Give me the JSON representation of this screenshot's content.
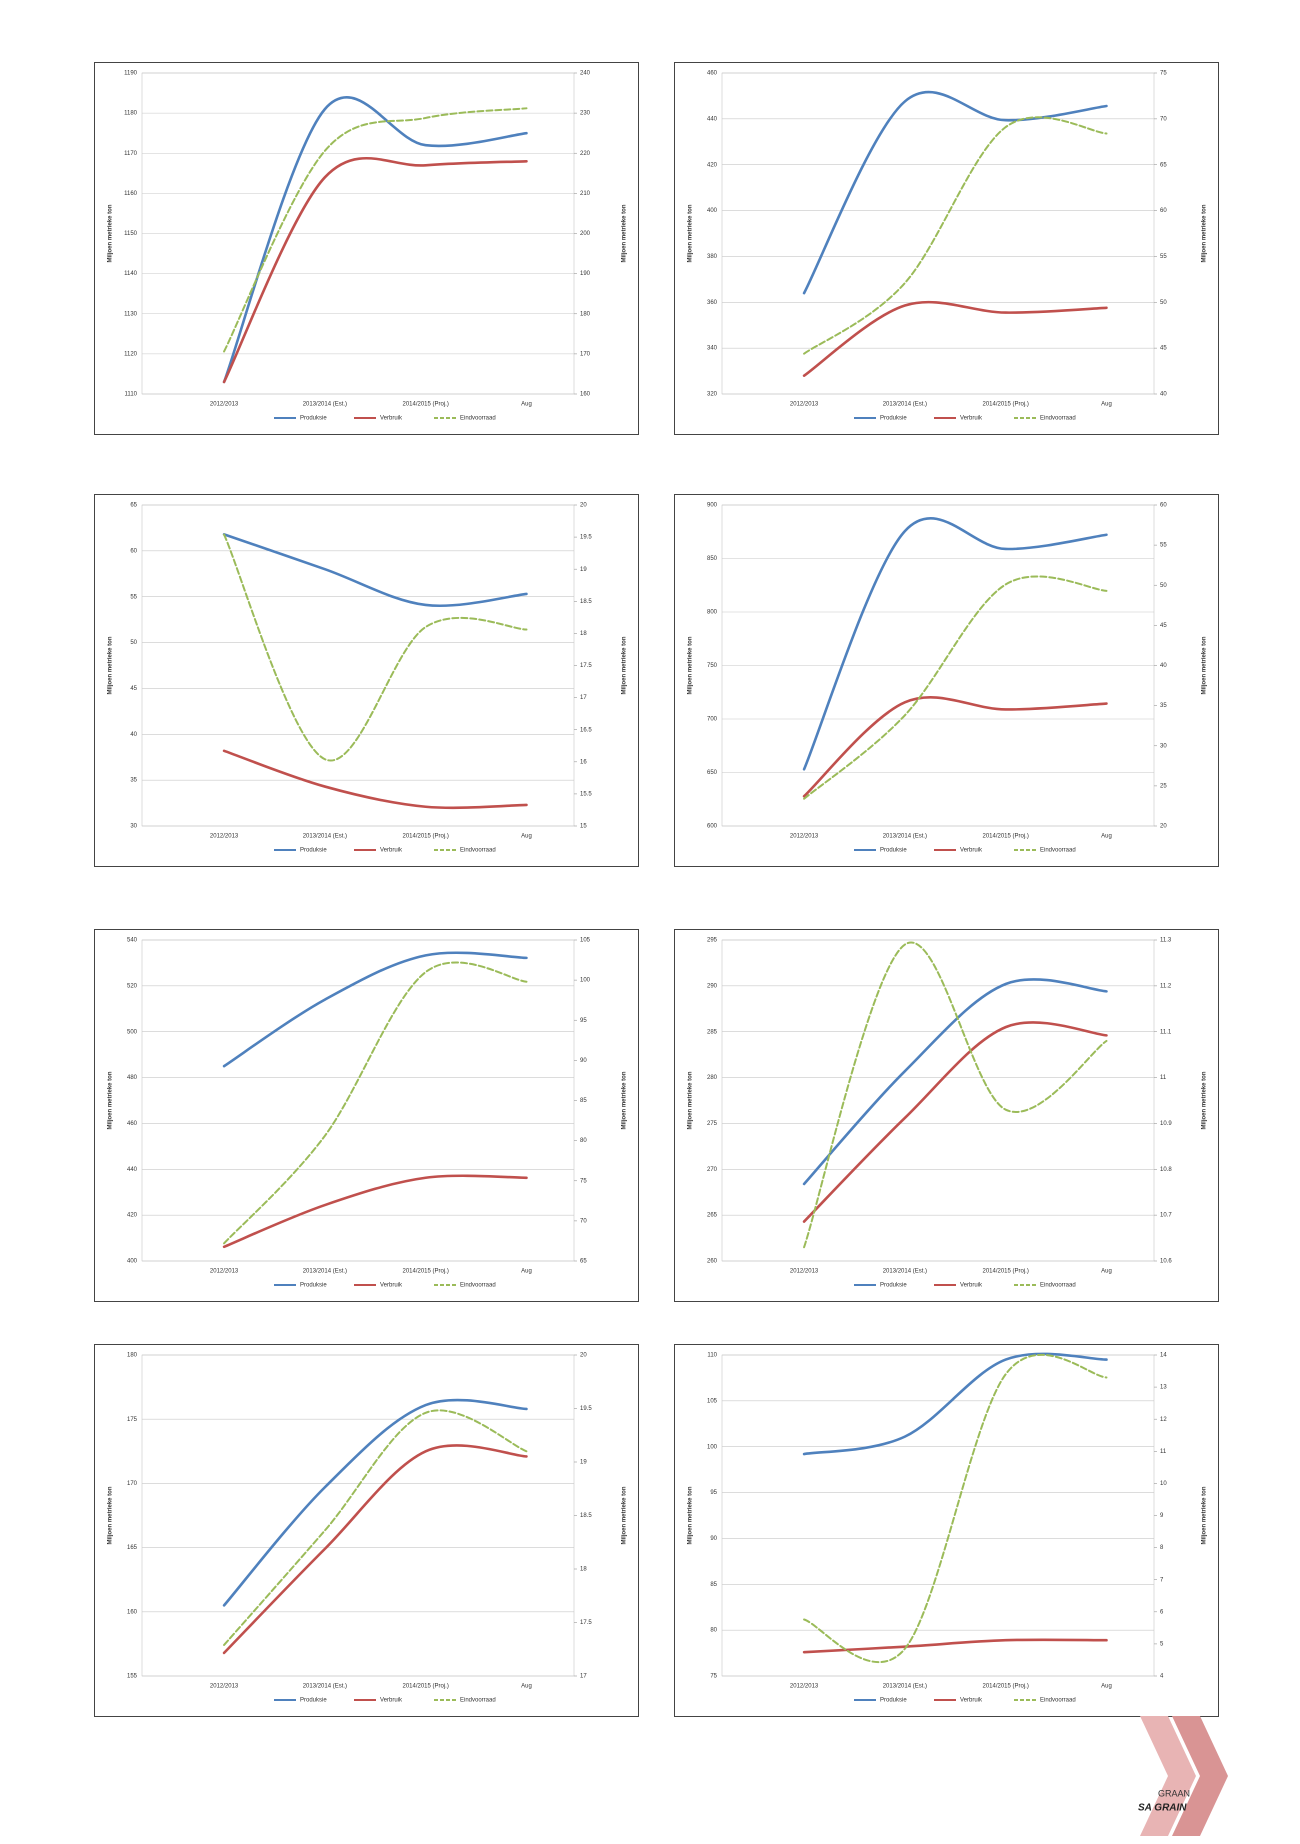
{
  "chart_data": [
    {
      "type": "line",
      "ylabel": "Miljoen metrieke ton",
      "y2label": "Miljoen metrieke ton",
      "categories": [
        "2012/2013",
        "2013/2014 (Est.)",
        "2014/2015 (Proj.)",
        "Aug"
      ],
      "ylim": [
        1110,
        1190
      ],
      "yticks": [
        1110,
        1120,
        1130,
        1140,
        1150,
        1160,
        1170,
        1180,
        1190
      ],
      "y2lim": [
        160,
        240
      ],
      "y2ticks": [
        160,
        170,
        180,
        190,
        200,
        210,
        220,
        230,
        240
      ],
      "grid": true,
      "series": [
        {
          "name": "Produksie",
          "color": "#4f81bd",
          "values": [
            1113,
            1181,
            1172,
            1175
          ]
        },
        {
          "name": "Verbruik",
          "color": "#c0504d",
          "values": [
            1113,
            1164,
            1167,
            1168
          ]
        },
        {
          "name": "Eindvoorraad",
          "color": "#9bbb59",
          "style": "dashed",
          "axis": "y2",
          "values": [
            170.6,
            220.6,
            228.8,
            231.2
          ]
        }
      ]
    },
    {
      "type": "line",
      "ylabel": "Miljoen metrieke ton",
      "y2label": "Miljoen metrieke ton",
      "categories": [
        "2012/2013",
        "2013/2014 (Est.)",
        "2014/2015 (Proj.)",
        "Aug"
      ],
      "ylim": [
        320,
        460
      ],
      "yticks": [
        320,
        340,
        360,
        380,
        400,
        420,
        440,
        460
      ],
      "y2lim": [
        40,
        75
      ],
      "y2ticks": [
        40,
        45,
        50,
        55,
        60,
        65,
        70,
        75
      ],
      "grid": true,
      "series": [
        {
          "name": "Produksie",
          "color": "#4f81bd",
          "values": [
            364,
            447.6,
            439.4,
            445.6
          ]
        },
        {
          "name": "Verbruik",
          "color": "#c0504d",
          "values": [
            328,
            358.6,
            355.5,
            357.6
          ]
        },
        {
          "name": "Eindvoorraad",
          "color": "#9bbb59",
          "style": "dashed",
          "axis": "y2",
          "values": [
            44.4,
            52.1,
            69.1,
            68.4
          ]
        }
      ]
    },
    {
      "type": "line",
      "ylabel": "Miljoen metrieke ton",
      "y2label": "Miljoen metrieke ton",
      "categories": [
        "2012/2013",
        "2013/2014 (Est.)",
        "2014/2015 (Proj.)",
        "Aug"
      ],
      "ylim": [
        30,
        65
      ],
      "yticks": [
        30,
        35,
        40,
        45,
        50,
        55,
        60,
        65
      ],
      "y2lim": [
        15,
        20
      ],
      "y2ticks": [
        15,
        15.5,
        16,
        16.5,
        17,
        17.5,
        18,
        18.5,
        19,
        19.5,
        20
      ],
      "grid": true,
      "series": [
        {
          "name": "Produksie",
          "color": "#4f81bd",
          "values": [
            61.8,
            58.0,
            54.1,
            55.3
          ]
        },
        {
          "name": "Verbruik",
          "color": "#c0504d",
          "values": [
            38.2,
            34.3,
            32.1,
            32.3
          ]
        },
        {
          "name": "Eindvoorraad",
          "color": "#9bbb59",
          "style": "dashed",
          "axis": "y2",
          "values": [
            19.54,
            16.04,
            18.1,
            18.06
          ]
        }
      ]
    },
    {
      "type": "line",
      "ylabel": "Miljoen metrieke ton",
      "y2label": "Miljoen metrieke ton",
      "categories": [
        "2012/2013",
        "2013/2014 (Est.)",
        "2014/2015 (Proj.)",
        "Aug"
      ],
      "ylim": [
        600,
        900
      ],
      "yticks": [
        600,
        650,
        700,
        750,
        800,
        850,
        900
      ],
      "y2lim": [
        20,
        60
      ],
      "y2ticks": [
        20,
        25,
        30,
        35,
        40,
        45,
        50,
        55,
        60
      ],
      "grid": true,
      "series": [
        {
          "name": "Produksie",
          "color": "#4f81bd",
          "values": [
            653,
            875.6,
            858.9,
            872.2
          ]
        },
        {
          "name": "Verbruik",
          "color": "#c0504d",
          "values": [
            627.8,
            715.6,
            708.9,
            714.4
          ]
        },
        {
          "name": "Eindvoorraad",
          "color": "#9bbb59",
          "style": "dashed",
          "axis": "y2",
          "values": [
            23.4,
            33.8,
            50.1,
            49.3
          ]
        }
      ]
    },
    {
      "type": "line",
      "ylabel": "Miljoen metrieke ton",
      "y2label": "Miljoen metrieke ton",
      "categories": [
        "2012/2013",
        "2013/2014 (Est.)",
        "2014/2015 (Proj.)",
        "Aug"
      ],
      "ylim": [
        400,
        540
      ],
      "yticks": [
        400,
        420,
        440,
        460,
        480,
        500,
        520,
        540
      ],
      "y2lim": [
        65,
        105
      ],
      "y2ticks": [
        65,
        70,
        75,
        80,
        85,
        90,
        95,
        100,
        105
      ],
      "grid": true,
      "series": [
        {
          "name": "Produksie",
          "color": "#4f81bd",
          "values": [
            485,
            514,
            533.3,
            532.2
          ]
        },
        {
          "name": "Verbruik",
          "color": "#c0504d",
          "values": [
            406.2,
            424.4,
            436.3,
            436.3
          ]
        },
        {
          "name": "Eindvoorraad",
          "color": "#9bbb59",
          "style": "dashed",
          "axis": "y2",
          "values": [
            67.2,
            80.6,
            101,
            99.8
          ]
        }
      ]
    },
    {
      "type": "line",
      "ylabel": "Miljoen metrieke ton",
      "y2label": "Miljoen metrieke ton",
      "categories": [
        "2012/2013",
        "2013/2014 (Est.)",
        "2014/2015 (Proj.)",
        "Aug"
      ],
      "ylim": [
        260,
        295
      ],
      "yticks": [
        260,
        265,
        270,
        275,
        280,
        285,
        290,
        295
      ],
      "y2lim": [
        10.6,
        11.3
      ],
      "y2ticks": [
        10.6,
        10.7,
        10.8,
        10.9,
        11,
        11.1,
        11.2,
        11.3
      ],
      "grid": true,
      "series": [
        {
          "name": "Produksie",
          "color": "#4f81bd",
          "values": [
            268.4,
            280.7,
            290.2,
            289.4
          ]
        },
        {
          "name": "Verbruik",
          "color": "#c0504d",
          "values": [
            264.3,
            275.6,
            285.5,
            284.6
          ]
        },
        {
          "name": "Eindvoorraad",
          "color": "#9bbb59",
          "style": "dashed",
          "axis": "y2",
          "values": [
            10.63,
            11.29,
            10.93,
            11.08
          ]
        }
      ]
    },
    {
      "type": "line",
      "ylabel": "Miljoen metrieke ton",
      "y2label": "Miljoen metrieke ton",
      "categories": [
        "2012/2013",
        "2013/2014 (Est.)",
        "2014/2015 (Proj.)",
        "Aug"
      ],
      "ylim": [
        155,
        180
      ],
      "yticks": [
        155,
        160,
        165,
        170,
        175,
        180
      ],
      "y2lim": [
        17,
        20
      ],
      "y2ticks": [
        17,
        17.5,
        18,
        18.5,
        19,
        19.5,
        20
      ],
      "grid": true,
      "series": [
        {
          "name": "Produksie",
          "color": "#4f81bd",
          "values": [
            160.5,
            169.7,
            176.1,
            175.8
          ]
        },
        {
          "name": "Verbruik",
          "color": "#c0504d",
          "values": [
            156.8,
            164.9,
            172.5,
            172.1
          ]
        },
        {
          "name": "Eindvoorraad",
          "color": "#9bbb59",
          "style": "dashed",
          "axis": "y2",
          "values": [
            17.29,
            18.36,
            19.46,
            19.1
          ]
        }
      ]
    },
    {
      "type": "line",
      "ylabel": "Miljoen metrieke ton",
      "y2label": "Miljoen metrieke ton",
      "categories": [
        "2012/2013",
        "2013/2014 (Est.)",
        "2014/2015 (Proj.)",
        "Aug"
      ],
      "ylim": [
        75,
        110
      ],
      "yticks": [
        75,
        80,
        85,
        90,
        95,
        100,
        105,
        110
      ],
      "y2lim": [
        4,
        14
      ],
      "y2ticks": [
        4,
        5,
        6,
        7,
        8,
        9,
        10,
        11,
        12,
        13,
        14
      ],
      "grid": true,
      "series": [
        {
          "name": "Produksie",
          "color": "#4f81bd",
          "values": [
            99.2,
            101.1,
            109.5,
            109.5
          ]
        },
        {
          "name": "Verbruik",
          "color": "#c0504d",
          "values": [
            77.6,
            78.2,
            78.9,
            78.9
          ]
        },
        {
          "name": "Eindvoorraad",
          "color": "#9bbb59",
          "style": "dashed",
          "axis": "y2",
          "values": [
            5.76,
            4.85,
            13.4,
            13.3
          ]
        }
      ]
    }
  ],
  "logo": {
    "top": "GRAAN",
    "main": "SA GRAIN"
  }
}
